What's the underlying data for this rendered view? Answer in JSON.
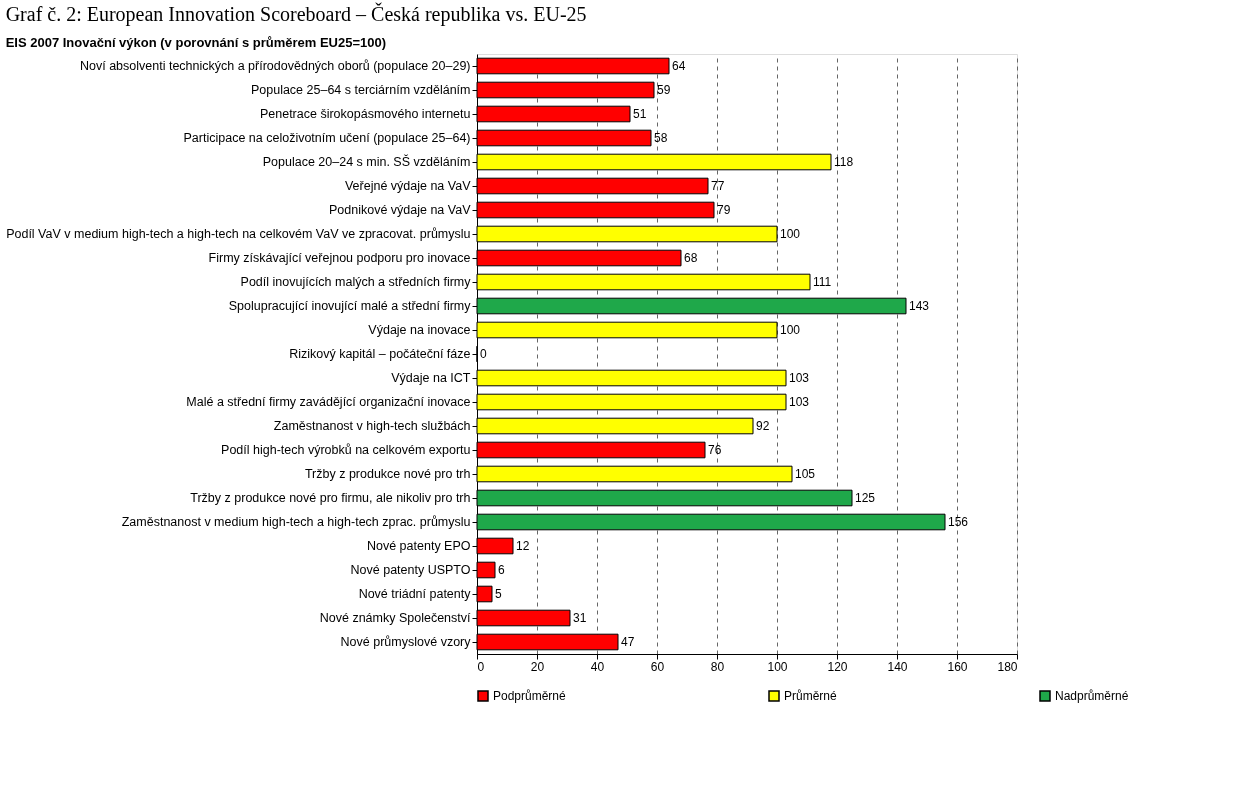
{
  "chart_data": {
    "type": "bar",
    "orientation": "horizontal",
    "title": "Graf č. 2: European Innovation Scoreboard – Česká republika vs. EU-25",
    "subtitle": "EIS 2007 Inovační výkon (v porovnání s průměrem EU25=100)",
    "categories": [
      "Noví absolventi technických a přírodovědných oborů (populace 20–29)",
      "Populace 25–64 s terciárním vzděláním",
      "Penetrace širokopásmového internetu",
      "Participace na celoživotním učení (populace 25–64)",
      "Populace 20–24 s min. SŠ vzděláním",
      "Veřejné výdaje na VaV",
      "Podnikové výdaje na VaV",
      "Podíl VaV v medium high-tech a high-tech na celkovém VaV ve zpracovat. průmyslu",
      "Firmy získávající veřejnou podporu pro inovace",
      "Podíl inovujících malých a středních firmy",
      "Spolupracující inovující malé a střední firmy",
      "Výdaje na inovace",
      "Rizikový kapitál – počáteční fáze",
      "Výdaje na ICT",
      "Malé a střední firmy zavádějící organizační inovace",
      "Zaměstnanost v high-tech službách",
      "Podíl high-tech výrobků na celkovém exportu",
      "Tržby z produkce nové pro trh",
      "Tržby z produkce nové pro firmu, ale nikoliv pro trh",
      "Zaměstnanost v medium high-tech a high-tech zprac. průmyslu",
      "Nové patenty EPO",
      "Nové patenty USPTO",
      "Nové triádní patenty",
      "Nové známky Společenství",
      "Nové průmyslové vzory"
    ],
    "series": [
      {
        "name": "Podprůměrné",
        "color": "#ff0000",
        "values": [
          64,
          59,
          51,
          58,
          null,
          77,
          79,
          null,
          68,
          null,
          null,
          null,
          0,
          null,
          null,
          null,
          76,
          null,
          null,
          null,
          12,
          6,
          5,
          31,
          47
        ]
      },
      {
        "name": "Průměrné",
        "color": "#ffff00",
        "values": [
          null,
          null,
          null,
          null,
          118,
          null,
          null,
          100,
          null,
          111,
          null,
          100,
          null,
          103,
          103,
          92,
          null,
          105,
          null,
          null,
          null,
          null,
          null,
          null,
          null
        ]
      },
      {
        "name": "Nadprůměrné",
        "color": "#1fa84a",
        "values": [
          null,
          null,
          null,
          null,
          null,
          null,
          null,
          null,
          null,
          null,
          143,
          null,
          null,
          null,
          null,
          null,
          null,
          null,
          125,
          156,
          null,
          null,
          null,
          null,
          null
        ]
      }
    ],
    "xlim": [
      0,
      180
    ],
    "xticks": [
      0,
      20,
      40,
      60,
      80,
      100,
      120,
      140,
      160,
      180
    ],
    "grid": "x",
    "legend": "bottom",
    "data_labels": true
  }
}
